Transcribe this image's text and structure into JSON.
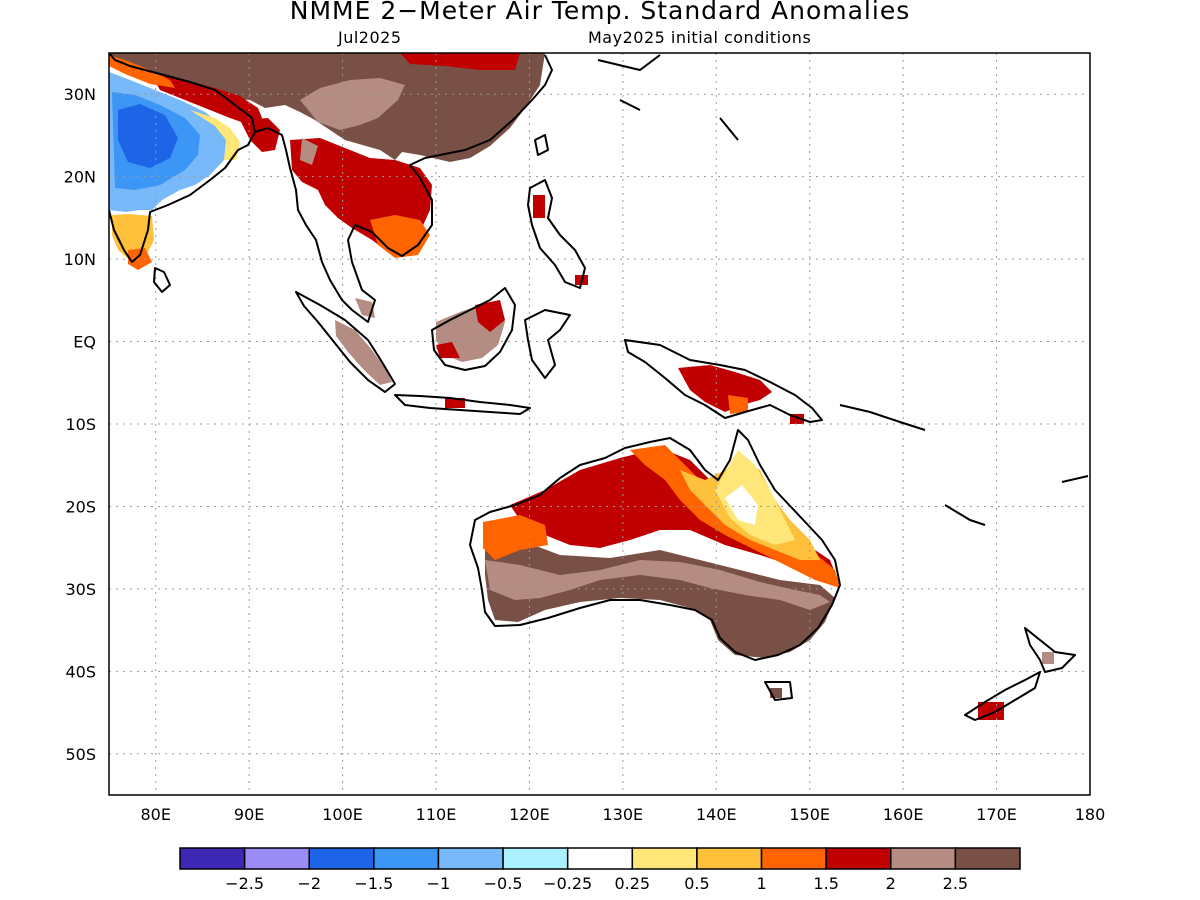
{
  "title": "NMME 2−Meter Air Temp. Standard Anomalies",
  "valid_month": "Jul2025",
  "init_label": "May2025 initial conditions",
  "lat_ticks": [
    "30N",
    "20N",
    "10N",
    "EQ",
    "10S",
    "20S",
    "30S",
    "40S",
    "50S"
  ],
  "lon_ticks": [
    "80E",
    "90E",
    "100E",
    "110E",
    "120E",
    "130E",
    "140E",
    "150E",
    "160E",
    "170E",
    "180"
  ],
  "colorbar": {
    "colors": [
      "#3c28b4",
      "#9b8cf5",
      "#1e64e6",
      "#3c96f5",
      "#78b9fa",
      "#aaf0ff",
      "#ffffff",
      "#ffe678",
      "#ffc03c",
      "#ff6400",
      "#c00000",
      "#b48c82",
      "#785046"
    ],
    "labels": [
      "−2.5",
      "−2",
      "−1.5",
      "−1",
      "−0.5",
      "−0.25",
      "0.25",
      "0.5",
      "1",
      "1.5",
      "2",
      "2.5"
    ]
  },
  "colors": {
    "coast": "#000000",
    "grid": "#9a9a9a",
    "india_cold": "#78b9fa",
    "india_core": "#3c96f5",
    "india_deep": "#1e64e6",
    "warm_brown": "#785046",
    "tan": "#b48c82",
    "red": "#c00000",
    "orange": "#ff6400",
    "lt_orange": "#ffc03c",
    "yellow": "#ffe678"
  }
}
